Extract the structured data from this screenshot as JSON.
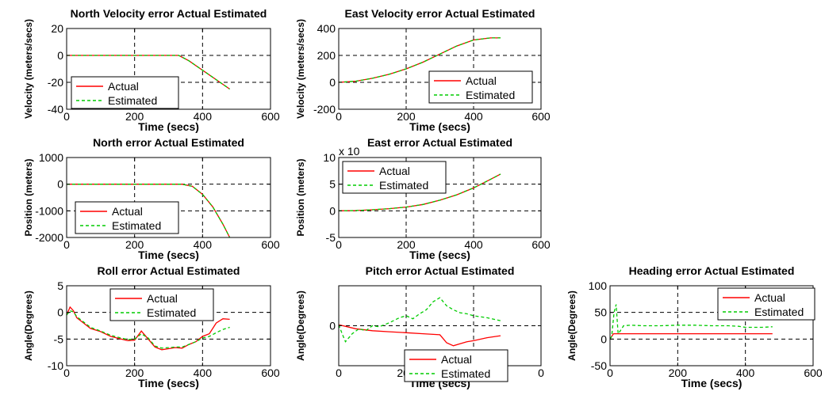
{
  "colors": {
    "actual": "#ff0000",
    "estimated": "#00cc00"
  },
  "chart_data": [
    {
      "type": "line",
      "title": "North Velocity error Actual Estimated",
      "xlabel": "Time (secs)",
      "ylabel": "Velocity (meters/secs)",
      "xlim": [
        0,
        600
      ],
      "ylim": [
        -40,
        20
      ],
      "xticks": [
        "0",
        "200",
        "400",
        "600"
      ],
      "yticks": [
        "-40",
        "-20",
        "0",
        "20"
      ],
      "grid": true,
      "legend": "bottom-left",
      "series": [
        {
          "name": "Actual",
          "x": [
            0,
            100,
            200,
            300,
            330,
            360,
            400,
            440,
            480
          ],
          "y": [
            0,
            0,
            0,
            0,
            0,
            -4,
            -11,
            -18,
            -25
          ]
        },
        {
          "name": "Estimated",
          "x": [
            0,
            100,
            200,
            300,
            330,
            360,
            400,
            440,
            480
          ],
          "y": [
            0,
            0,
            0,
            0,
            0,
            -4,
            -11,
            -18,
            -25
          ]
        }
      ]
    },
    {
      "type": "line",
      "title": "East Velocity error Actual Estimated",
      "xlabel": "Time (secs)",
      "ylabel": "Velocity (meters/secs)",
      "xlim": [
        0,
        600
      ],
      "ylim": [
        -200,
        400
      ],
      "xticks": [
        "0",
        "200",
        "400",
        "600"
      ],
      "yticks": [
        "-200",
        "0",
        "200",
        "400"
      ],
      "grid": true,
      "legend": "bottom-right",
      "series": [
        {
          "name": "Actual",
          "x": [
            0,
            50,
            100,
            150,
            200,
            250,
            300,
            350,
            400,
            450,
            480
          ],
          "y": [
            0,
            8,
            30,
            60,
            100,
            150,
            210,
            270,
            315,
            330,
            330
          ]
        },
        {
          "name": "Estimated",
          "x": [
            0,
            50,
            100,
            150,
            200,
            250,
            300,
            350,
            400,
            450,
            480
          ],
          "y": [
            0,
            8,
            30,
            60,
            100,
            150,
            210,
            270,
            315,
            330,
            330
          ]
        }
      ]
    },
    {
      "type": "line",
      "title": "North error Actual Estimated",
      "xlabel": "Time (secs)",
      "ylabel": "Position (meters)",
      "xlim": [
        0,
        600
      ],
      "ylim": [
        -2000,
        1000
      ],
      "xticks": [
        "0",
        "200",
        "400",
        "600"
      ],
      "yticks": [
        "-2000",
        "-1000",
        "0",
        "1000"
      ],
      "grid": true,
      "legend": "bottom-left",
      "series": [
        {
          "name": "Actual",
          "x": [
            0,
            100,
            200,
            300,
            340,
            370,
            400,
            430,
            460,
            480
          ],
          "y": [
            0,
            0,
            0,
            0,
            0,
            -80,
            -380,
            -850,
            -1500,
            -2000
          ]
        },
        {
          "name": "Estimated",
          "x": [
            0,
            100,
            200,
            300,
            340,
            370,
            400,
            430,
            460,
            480
          ],
          "y": [
            0,
            0,
            0,
            0,
            0,
            -80,
            -380,
            -850,
            -1500,
            -2000
          ]
        }
      ]
    },
    {
      "type": "line",
      "title": "East error Actual Estimated",
      "xlabel": "Time (secs)",
      "ylabel": "Position (meters)",
      "multiplier": "x 10",
      "xlim": [
        0,
        600
      ],
      "ylim": [
        -5,
        10
      ],
      "xticks": [
        "0",
        "200",
        "400",
        "600"
      ],
      "yticks": [
        "-5",
        "0",
        "5",
        "10"
      ],
      "grid": true,
      "legend": "top-left",
      "series": [
        {
          "name": "Actual",
          "x": [
            0,
            50,
            100,
            150,
            200,
            250,
            300,
            350,
            400,
            450,
            480
          ],
          "y": [
            0,
            0.05,
            0.2,
            0.4,
            0.7,
            1.2,
            2.0,
            3.0,
            4.3,
            5.9,
            6.9
          ]
        },
        {
          "name": "Estimated",
          "x": [
            0,
            50,
            100,
            150,
            200,
            250,
            300,
            350,
            400,
            450,
            480
          ],
          "y": [
            0,
            0.05,
            0.2,
            0.4,
            0.7,
            1.2,
            2.0,
            3.0,
            4.3,
            5.9,
            6.9
          ]
        }
      ]
    },
    {
      "type": "line",
      "title": "Roll error Actual Estimated",
      "xlabel": "Time (secs)",
      "ylabel": "Angle(Degrees)",
      "xlim": [
        0,
        600
      ],
      "ylim": [
        -10,
        5
      ],
      "xticks": [
        "0",
        "200",
        "400",
        "600"
      ],
      "yticks": [
        "-10",
        "-5",
        "0",
        "5"
      ],
      "grid": true,
      "legend": "top-center",
      "series": [
        {
          "name": "Actual",
          "x": [
            0,
            10,
            20,
            30,
            50,
            70,
            100,
            130,
            160,
            180,
            200,
            220,
            240,
            260,
            280,
            300,
            320,
            340,
            360,
            380,
            400,
            420,
            440,
            460,
            480
          ],
          "y": [
            -0.5,
            1.0,
            0.3,
            -1.0,
            -2.0,
            -3.0,
            -3.6,
            -4.5,
            -5.0,
            -5.3,
            -5.2,
            -3.5,
            -5.0,
            -6.5,
            -7.0,
            -6.8,
            -6.6,
            -6.7,
            -6.0,
            -5.5,
            -4.5,
            -4.0,
            -2.0,
            -1.2,
            -1.3
          ]
        },
        {
          "name": "Estimated",
          "x": [
            0,
            10,
            20,
            30,
            50,
            70,
            100,
            130,
            160,
            180,
            200,
            220,
            240,
            260,
            280,
            300,
            320,
            340,
            360,
            380,
            400,
            420,
            440,
            460,
            480
          ],
          "y": [
            -0.5,
            0.3,
            0.1,
            -0.8,
            -1.8,
            -2.8,
            -3.5,
            -4.3,
            -4.8,
            -5.1,
            -5.0,
            -4.0,
            -4.8,
            -6.3,
            -6.7,
            -6.6,
            -6.5,
            -6.5,
            -6.0,
            -5.5,
            -4.8,
            -4.5,
            -3.8,
            -3.2,
            -2.8
          ]
        }
      ]
    },
    {
      "type": "line",
      "title": "Pitch error Actual Estimated",
      "xlabel": "Time (secs)",
      "ylabel": "Angle(Degrees)",
      "xlim": [
        0,
        600
      ],
      "xticks": [
        "0",
        "200",
        "400",
        "0"
      ],
      "yticks": [
        "0"
      ],
      "grid": true,
      "legend": "bottom-right",
      "series": [
        {
          "name": "Actual",
          "x": [
            0,
            50,
            100,
            150,
            200,
            250,
            300,
            310,
            320,
            340,
            360,
            380,
            400,
            440,
            480
          ],
          "y": [
            0.1,
            -0.3,
            -0.5,
            -0.6,
            -0.7,
            -0.8,
            -0.9,
            -1.3,
            -1.7,
            -2.0,
            -1.8,
            -1.6,
            -1.5,
            -1.2,
            -1.0
          ]
        },
        {
          "name": "Estimated",
          "x": [
            0,
            10,
            20,
            40,
            60,
            80,
            100,
            120,
            150,
            180,
            200,
            220,
            240,
            260,
            280,
            300,
            320,
            340,
            360,
            380,
            400,
            440,
            480
          ],
          "y": [
            0.1,
            -0.8,
            -1.6,
            -0.8,
            -0.3,
            -0.5,
            0.0,
            -0.1,
            0.3,
            0.8,
            1.0,
            0.7,
            1.2,
            1.6,
            2.4,
            2.8,
            2.0,
            1.6,
            1.3,
            1.2,
            1.0,
            0.8,
            0.5
          ]
        }
      ]
    },
    {
      "type": "line",
      "title": "Heading error Actual Estimated",
      "xlabel": "Time (secs)",
      "ylabel": "Angle(Degrees)",
      "xlim": [
        0,
        600
      ],
      "ylim": [
        -50,
        100
      ],
      "xticks": [
        "0",
        "200",
        "400",
        "600"
      ],
      "yticks": [
        "-50",
        "0",
        "50",
        "100"
      ],
      "grid": true,
      "legend": "top-right",
      "series": [
        {
          "name": "Actual",
          "x": [
            0,
            10,
            20,
            480
          ],
          "y": [
            0,
            10,
            10,
            10
          ]
        },
        {
          "name": "Estimated",
          "x": [
            0,
            5,
            12,
            18,
            24,
            30,
            40,
            60,
            100,
            150,
            200,
            250,
            300,
            350,
            380,
            400,
            450,
            480
          ],
          "y": [
            0,
            5,
            50,
            65,
            10,
            15,
            25,
            26,
            25,
            25,
            26,
            26,
            25,
            25,
            24,
            22,
            22,
            23
          ]
        }
      ]
    }
  ]
}
